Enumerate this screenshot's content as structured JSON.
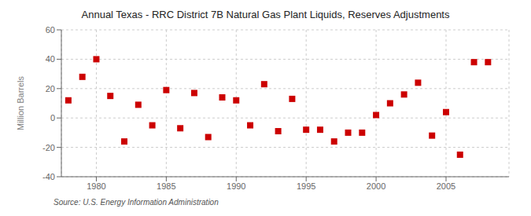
{
  "chart_data": {
    "type": "scatter",
    "title": "Annual Texas - RRC District 7B Natural Gas Plant Liquids, Reserves Adjustments",
    "ylabel": "Million Barrels",
    "annotations": [
      "Source: U.S. Energy Information Administration"
    ],
    "color": "#cc0000",
    "marker": "square",
    "grid": true,
    "xlim": [
      1977.5,
      2009.5
    ],
    "ylim": [
      -40,
      60
    ],
    "xticks": [
      1980,
      1985,
      1990,
      1995,
      2000,
      2005
    ],
    "yticks": [
      -40,
      -20,
      0,
      20,
      40,
      60
    ],
    "x": [
      1978,
      1979,
      1980,
      1981,
      1982,
      1983,
      1984,
      1985,
      1986,
      1987,
      1988,
      1989,
      1990,
      1991,
      1992,
      1993,
      1994,
      1995,
      1996,
      1997,
      1998,
      1999,
      2000,
      2001,
      2002,
      2003,
      2004,
      2005,
      2006,
      2007,
      2008
    ],
    "values": [
      12,
      28,
      40,
      15,
      -16,
      9,
      -5,
      19,
      -7,
      17,
      -13,
      14,
      12,
      -5,
      23,
      -9,
      13,
      -8,
      -8,
      -16,
      -10,
      -10,
      2,
      10,
      16,
      24,
      -12,
      4,
      -25,
      38,
      38
    ]
  }
}
